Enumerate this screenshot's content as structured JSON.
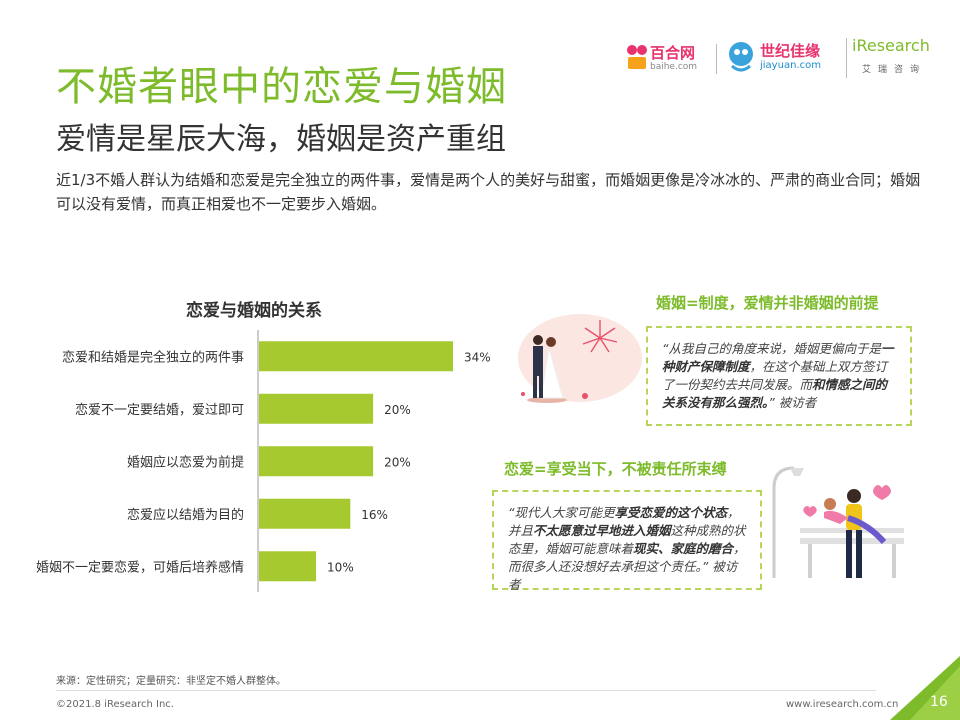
{
  "header": {
    "title": "不婚者眼中的恋爱与婚姻",
    "subtitle": "爱情是星辰大海，婚姻是资产重组",
    "intro": "近1/3不婚人群认为结婚和恋爱是完全独立的两件事，爱情是两个人的美好与甜蜜，而婚姻更像是冷冰冰的、严肃的商业合同；婚姻可以没有爱情，而真正相爱也不一定要步入婚姻。"
  },
  "logos": {
    "baihe_name": "百合网",
    "baihe_url": "baihe.com",
    "jiayuan_name": "世纪佳缘",
    "jiayuan_url": "jiayuan.com",
    "iresearch_name": "iResearch",
    "iresearch_cn": "艾瑞咨询"
  },
  "chart_data": {
    "type": "bar",
    "orientation": "horizontal",
    "title": "恋爱与婚姻的关系",
    "categories": [
      "恋爱和结婚是完全独立的两件事",
      "恋爱不一定要结婚，爱过即可",
      "婚姻应以恋爱为前提",
      "恋爱应以结婚为目的",
      "婚姻不一定要恋爱，可婚后培养感情"
    ],
    "values": [
      34,
      20,
      20,
      16,
      10
    ],
    "value_labels": [
      "34%",
      "20%",
      "20%",
      "16%",
      "10%"
    ],
    "unit": "%",
    "xlim": [
      0,
      40
    ],
    "grid": false,
    "bar_color": "#a5c92f"
  },
  "section1": {
    "heading": "婚姻=制度，爱情并非婚姻的前提",
    "quote_parts": [
      {
        "t": "“从我自己的角度来说，婚姻更偏向于是",
        "b": false
      },
      {
        "t": "一种财产保障制度",
        "b": true
      },
      {
        "t": "，在这个基础上双方签订了一份契约去共同发展。而",
        "b": false
      },
      {
        "t": "和情感之间的关系没有那么强烈。",
        "b": true
      },
      {
        "t": "” 被访者",
        "b": false
      }
    ]
  },
  "section2": {
    "heading": "恋爱=享受当下，不被责任所束缚",
    "quote_parts": [
      {
        "t": "“现代人大家可能更",
        "b": false
      },
      {
        "t": "享受恋爱的这个状态",
        "b": true
      },
      {
        "t": "，并且",
        "b": false
      },
      {
        "t": "不太愿意过早地进入婚姻",
        "b": true
      },
      {
        "t": "这种成熟的状态里，婚姻可能意味着",
        "b": false
      },
      {
        "t": "现实、家庭的磨合",
        "b": true
      },
      {
        "t": "，而很多人还没想好去承担这个责任。” 被访者",
        "b": false
      }
    ]
  },
  "footer": {
    "source": "来源：定性研究；定量研究：非坚定不婚人群整体。",
    "copyright": "©2021.8 iResearch Inc.",
    "website": "www.iresearch.com.cn",
    "page": "16"
  },
  "colors": {
    "brand_green": "#7dbb2b",
    "bar_green": "#a5c92f",
    "dash_border": "#b6d55a",
    "logo_pink": "#e8336c"
  }
}
